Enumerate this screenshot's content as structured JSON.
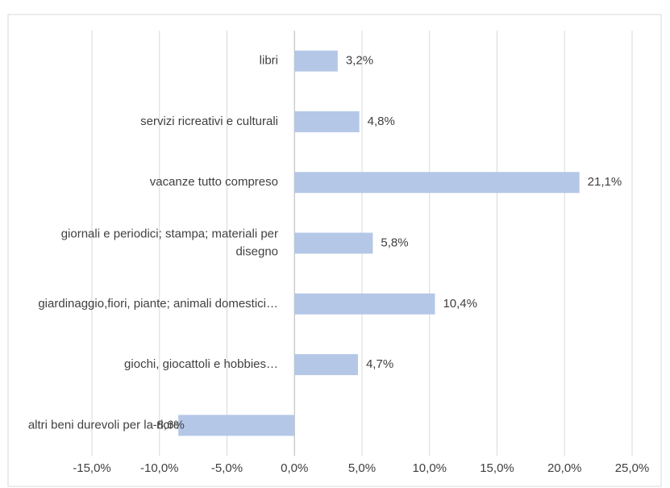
{
  "chart_data": {
    "type": "bar",
    "orientation": "horizontal",
    "categories": [
      "libri",
      "servizi ricreativi e culturali",
      "vacanze tutto compreso",
      "giornali e periodici; stampa; materiali per disegno",
      "giardinaggio,fiori, piante; animali domestici…",
      "giochi, giocattoli e hobbies…",
      "altri beni durevoli per la ricreazione e la cultura"
    ],
    "values": [
      3.2,
      4.8,
      21.1,
      5.8,
      10.4,
      4.7,
      -8.6
    ],
    "value_labels": [
      "3,2%",
      "4,8%",
      "21,1%",
      "5,8%",
      "10,4%",
      "4,7%",
      "-8,6%"
    ],
    "color": "#b4c7e7",
    "xlim": [
      -15,
      25
    ],
    "xticks": [
      {
        "value": -15,
        "label": "-15,0%"
      },
      {
        "value": -10,
        "label": "-10,0%"
      },
      {
        "value": -5,
        "label": "-5,0%"
      },
      {
        "value": 0,
        "label": "0,0%"
      },
      {
        "value": 5,
        "label": "5,0%"
      },
      {
        "value": 10,
        "label": "10,0%"
      },
      {
        "value": 15,
        "label": "15,0%"
      },
      {
        "value": 20,
        "label": "20,0%"
      },
      {
        "value": 25,
        "label": "25,0%"
      }
    ],
    "grid": true
  }
}
